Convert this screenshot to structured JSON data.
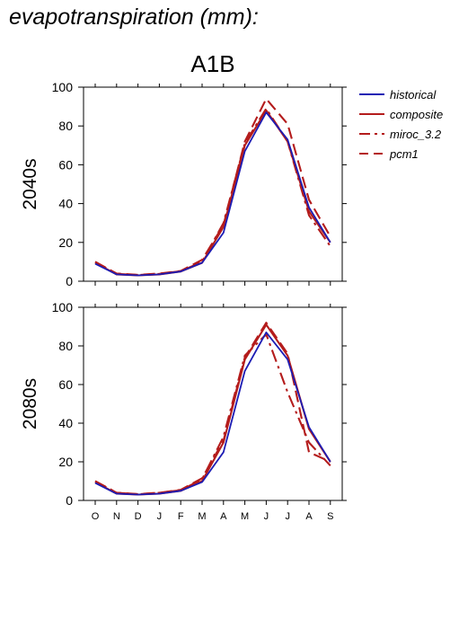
{
  "header": {
    "variable_title": "evapotranspiration (mm):",
    "scenario_title": "A1B"
  },
  "legend": {
    "items": [
      {
        "label": "historical",
        "style": "solid",
        "color": "#1c1cb4"
      },
      {
        "label": "composite",
        "style": "solid",
        "color": "#b41c1c"
      },
      {
        "label": "miroc_3.2",
        "style": "dashdot",
        "color": "#b41c1c"
      },
      {
        "label": "pcm1",
        "style": "dashed",
        "color": "#b41c1c"
      }
    ]
  },
  "chart_data": [
    {
      "type": "line",
      "panel_label": "2040s",
      "categories": [
        "O",
        "N",
        "D",
        "J",
        "F",
        "M",
        "A",
        "M",
        "J",
        "J",
        "A",
        "S"
      ],
      "ylim": [
        0,
        100
      ],
      "yticks": [
        0,
        20,
        40,
        60,
        80,
        100
      ],
      "series": [
        {
          "name": "historical",
          "values": [
            9,
            3.5,
            3,
            3.5,
            5,
            9.5,
            25,
            67,
            87,
            73,
            38,
            20
          ]
        },
        {
          "name": "composite",
          "values": [
            9.5,
            3.5,
            3,
            3.5,
            5,
            9.5,
            28,
            70,
            88,
            72,
            36,
            20
          ]
        },
        {
          "name": "miroc_3.2",
          "values": [
            10,
            3.8,
            3.2,
            3.8,
            5.2,
            10,
            30,
            71,
            89,
            72,
            34,
            18
          ]
        },
        {
          "name": "pcm1",
          "values": [
            10,
            4,
            3.3,
            4,
            5.3,
            11,
            29,
            72,
            94,
            81,
            42,
            23
          ]
        }
      ]
    },
    {
      "type": "line",
      "panel_label": "2080s",
      "categories": [
        "O",
        "N",
        "D",
        "J",
        "F",
        "M",
        "A",
        "M",
        "J",
        "J",
        "A",
        "S"
      ],
      "ylim": [
        0,
        100
      ],
      "yticks": [
        0,
        20,
        40,
        60,
        80,
        100
      ],
      "series": [
        {
          "name": "historical",
          "values": [
            9,
            3.5,
            3,
            3.5,
            5,
            9.5,
            25,
            67,
            87,
            73,
            38,
            20
          ]
        },
        {
          "name": "composite",
          "values": [
            9.5,
            3.5,
            3,
            3.5,
            5,
            10,
            30,
            73,
            91,
            75,
            37,
            20
          ]
        },
        {
          "name": "miroc_3.2",
          "values": [
            10,
            4,
            3.2,
            4,
            5.3,
            11,
            33,
            75,
            86,
            56,
            30,
            18
          ]
        },
        {
          "name": "pcm1",
          "values": [
            10,
            4,
            3.3,
            4,
            5.5,
            11.5,
            31,
            74,
            92,
            76,
            25,
            20
          ]
        }
      ]
    }
  ]
}
